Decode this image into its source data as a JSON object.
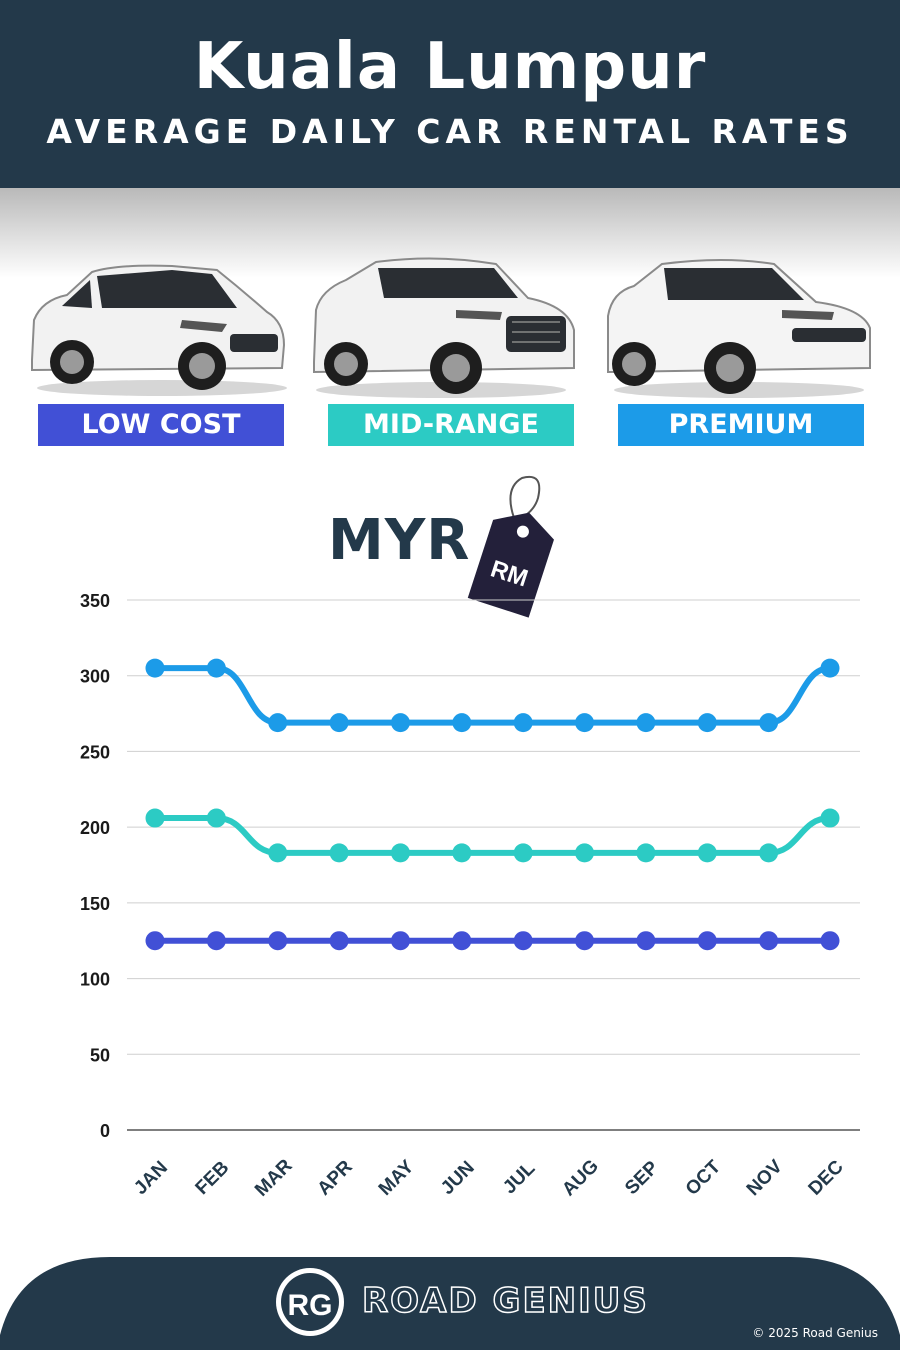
{
  "header": {
    "title": "Kuala Lumpur",
    "subtitle": "AVERAGE DAILY CAR RENTAL RATES"
  },
  "categories": [
    {
      "label": "LOW COST",
      "color": "#4150d6"
    },
    {
      "label": "MID-RANGE",
      "color": "#2ccbc4"
    },
    {
      "label": "PREMIUM",
      "color": "#1c9be8"
    }
  ],
  "currency": {
    "code": "MYR",
    "tag_text": "RM"
  },
  "chart_data": {
    "type": "line",
    "categories": [
      "JAN",
      "FEB",
      "MAR",
      "APR",
      "MAY",
      "JUN",
      "JUL",
      "AUG",
      "SEP",
      "OCT",
      "NOV",
      "DEC"
    ],
    "series": [
      {
        "name": "PREMIUM",
        "color": "#1c9be8",
        "values": [
          305,
          305,
          269,
          269,
          269,
          269,
          269,
          269,
          269,
          269,
          269,
          305
        ]
      },
      {
        "name": "MID-RANGE",
        "color": "#2ccbc4",
        "values": [
          206,
          206,
          183,
          183,
          183,
          183,
          183,
          183,
          183,
          183,
          183,
          206
        ]
      },
      {
        "name": "LOW COST",
        "color": "#4150d6",
        "values": [
          125,
          125,
          125,
          125,
          125,
          125,
          125,
          125,
          125,
          125,
          125,
          125
        ]
      }
    ],
    "ylim": [
      0,
      350
    ],
    "yticks": [
      0,
      50,
      100,
      150,
      200,
      250,
      300,
      350
    ],
    "grid": true
  },
  "footer": {
    "logo_text": "RG",
    "brand": "ROAD GENIUS",
    "copyright": "© 2025 Road Genius",
    "color": "#23394a"
  }
}
